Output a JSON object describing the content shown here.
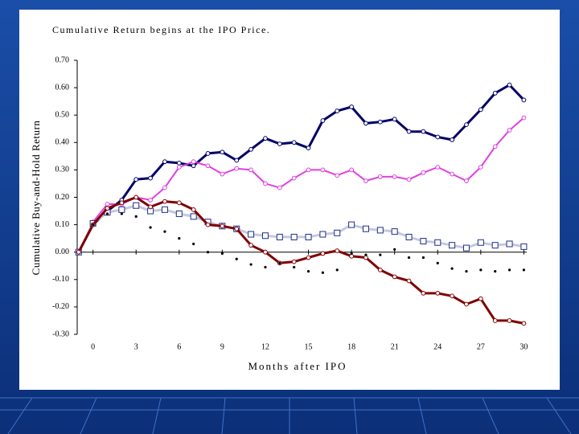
{
  "chart_data": {
    "type": "line",
    "title": "Cumulative Return begins at the IPO Price.",
    "x_label": "Months after IPO",
    "y_label": "Cumulative Buy-and-Hold Return",
    "x": [
      -1,
      0,
      1,
      2,
      3,
      4,
      5,
      6,
      7,
      8,
      9,
      10,
      11,
      12,
      13,
      14,
      15,
      16,
      17,
      18,
      19,
      20,
      21,
      22,
      23,
      24,
      25,
      26,
      27,
      28,
      29,
      30
    ],
    "series": [
      {
        "color": "#000066",
        "marker": "circle",
        "width": 3,
        "values": [
          0,
          0.1,
          0.15,
          0.19,
          0.265,
          0.27,
          0.33,
          0.325,
          0.315,
          0.36,
          0.365,
          0.335,
          0.375,
          0.415,
          0.395,
          0.4,
          0.38,
          0.48,
          0.515,
          0.53,
          0.47,
          0.475,
          0.485,
          0.44,
          0.44,
          0.42,
          0.41,
          0.465,
          0.52,
          0.58,
          0.61,
          0.555
        ]
      },
      {
        "color": "#e040e0",
        "marker": "circle",
        "width": 2,
        "values": [
          0,
          0.11,
          0.175,
          0.175,
          0.2,
          0.19,
          0.235,
          0.31,
          0.33,
          0.315,
          0.285,
          0.305,
          0.3,
          0.25,
          0.235,
          0.27,
          0.3,
          0.3,
          0.28,
          0.3,
          0.26,
          0.275,
          0.275,
          0.265,
          0.29,
          0.31,
          0.285,
          0.26,
          0.31,
          0.385,
          0.445,
          0.49
        ]
      },
      {
        "color": "#c4c8dc",
        "marker": "square",
        "width": 3,
        "values": [
          0,
          0.105,
          0.145,
          0.155,
          0.17,
          0.15,
          0.155,
          0.14,
          0.13,
          0.11,
          0.095,
          0.085,
          0.065,
          0.06,
          0.055,
          0.055,
          0.055,
          0.065,
          0.07,
          0.1,
          0.085,
          0.08,
          0.075,
          0.055,
          0.04,
          0.035,
          0.025,
          0.015,
          0.035,
          0.025,
          0.03,
          0.02
        ]
      },
      {
        "color": "#800000",
        "marker": "circle",
        "width": 3,
        "values": [
          0,
          0.1,
          0.16,
          0.18,
          0.2,
          0.165,
          0.185,
          0.18,
          0.155,
          0.1,
          0.095,
          0.085,
          0.025,
          0.0,
          -0.04,
          -0.035,
          -0.02,
          -0.005,
          0.005,
          -0.015,
          -0.02,
          -0.065,
          -0.09,
          -0.105,
          -0.15,
          -0.15,
          -0.16,
          -0.19,
          -0.17,
          -0.25,
          -0.25,
          -0.26
        ]
      },
      {
        "color": "#000000",
        "marker": "dot",
        "line": false,
        "values": [
          null,
          0.1,
          0.14,
          0.14,
          0.13,
          0.09,
          0.075,
          0.05,
          0.03,
          0.0,
          -0.005,
          -0.025,
          -0.045,
          -0.055,
          -0.04,
          -0.055,
          -0.07,
          -0.075,
          -0.065,
          -0.005,
          -0.01,
          -0.01,
          0.01,
          -0.02,
          -0.02,
          -0.04,
          -0.06,
          -0.07,
          -0.065,
          -0.07,
          -0.065,
          -0.065
        ]
      }
    ],
    "xlim": [
      -1.1,
      30.2
    ],
    "xticks": [
      0,
      3,
      6,
      9,
      12,
      15,
      18,
      21,
      24,
      27,
      30
    ],
    "ylim": [
      -0.3,
      0.7
    ],
    "yticks": [
      {
        "value": -0.3,
        "label": "-0.30"
      },
      {
        "value": -0.2,
        "label": "-0.20"
      },
      {
        "value": -0.1,
        "label": "-0.10"
      },
      {
        "value": 0,
        "label": "0.00"
      },
      {
        "value": 0.1,
        "label": "0.10"
      },
      {
        "value": 0.2,
        "label": "0.20"
      },
      {
        "value": 0.3,
        "label": "0.30"
      },
      {
        "value": 0.4,
        "label": "0.40"
      },
      {
        "value": 0.5,
        "label": "0.50"
      },
      {
        "value": 0.6,
        "label": "0.60"
      },
      {
        "value": 0.7,
        "label": "0.70"
      }
    ],
    "grid": false
  }
}
